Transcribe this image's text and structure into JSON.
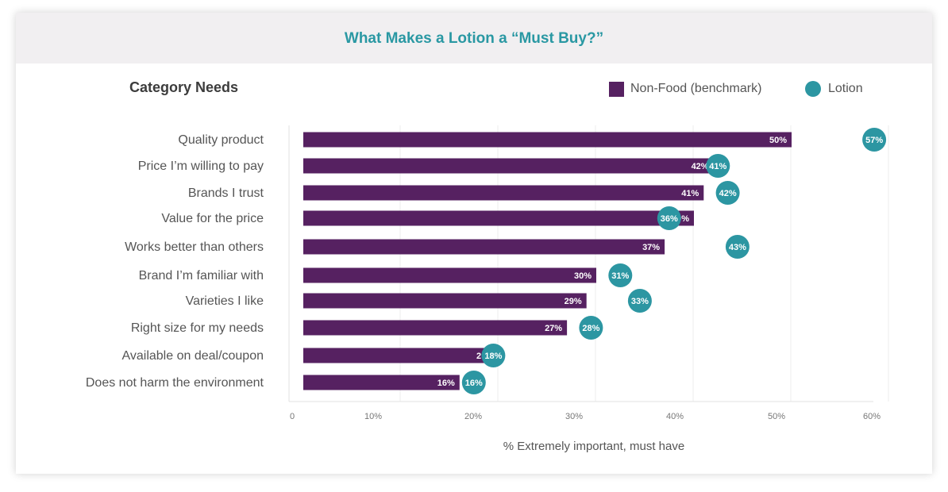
{
  "title": "What Makes a Lotion a “Must Buy?”",
  "section_label": "Category Needs",
  "legend": [
    {
      "label": "Non-Food (benchmark)",
      "icon": "square-icon",
      "color": "#562161"
    },
    {
      "label": "Lotion",
      "icon": "circle-icon",
      "color": "#2c96a2"
    }
  ],
  "chart_data": {
    "type": "bar",
    "orientation": "horizontal",
    "categories": [
      "Quality product",
      "Price I’m willing to pay",
      "Brands I trust",
      "Value for the price",
      "Works better than others",
      "Brand I’m familiar with",
      "Varieties I like",
      "Right size for my needs",
      "Available on deal/coupon",
      "Does not harm the environment"
    ],
    "series": [
      {
        "name": "Non-Food (benchmark)",
        "mark": "bar",
        "values": [
          50,
          42,
          41,
          40,
          37,
          30,
          29,
          27,
          20,
          16
        ]
      },
      {
        "name": "Lotion",
        "mark": "dot",
        "values": [
          57,
          41,
          42,
          36,
          43,
          31,
          33,
          28,
          18,
          16
        ]
      }
    ],
    "value_suffix": "%",
    "xlim": [
      0,
      60
    ],
    "xticks": [
      0,
      10,
      20,
      30,
      40,
      50,
      60
    ],
    "xtick_labels": [
      "0",
      "10%",
      "20%",
      "30%",
      "40%",
      "50%",
      "60%"
    ],
    "xlabel": "% Extremely important, must have",
    "grid": true
  }
}
